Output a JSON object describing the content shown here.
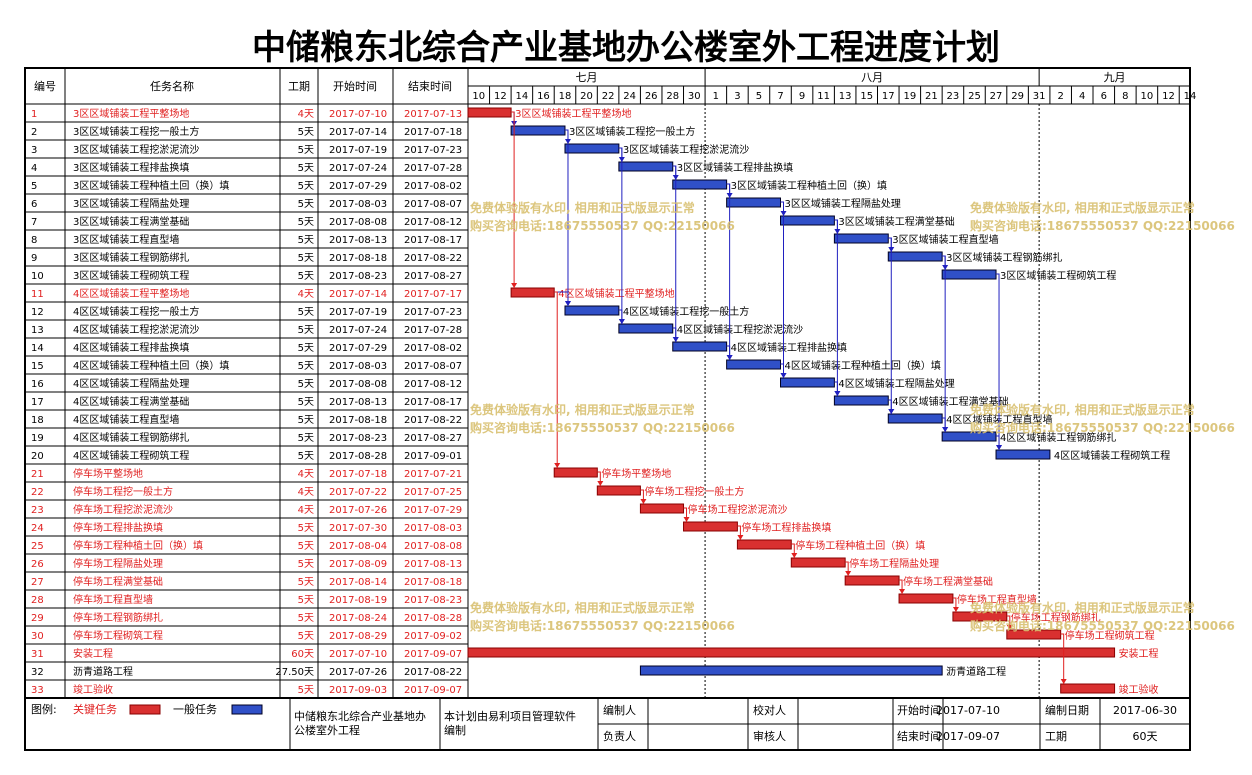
{
  "title": "中储粮东北综合产业基地办公楼室外工程进度计划",
  "headers": {
    "id": "编号",
    "name": "任务名称",
    "duration": "工期",
    "start": "开始时间",
    "end": "结束时间"
  },
  "months": [
    {
      "label": "七月",
      "from": "2017-07-10",
      "to": "2017-08-01"
    },
    {
      "label": "八月",
      "from": "2017-08-01",
      "to": "2017-09-01"
    },
    {
      "label": "九月",
      "from": "2017-09-01",
      "to": "2017-09-15"
    }
  ],
  "day_ticks": [
    "10",
    "12",
    "14",
    "16",
    "18",
    "20",
    "22",
    "24",
    "26",
    "28",
    "30",
    "1",
    "3",
    "5",
    "7",
    "9",
    "11",
    "13",
    "15",
    "17",
    "19",
    "21",
    "23",
    "25",
    "27",
    "29",
    "31",
    "2",
    "4",
    "6",
    "8",
    "10",
    "12",
    "14"
  ],
  "colors": {
    "critical": "#e02020",
    "critical_fill": "#d93030",
    "normal": "#2020c0",
    "normal_fill": "#3050c8",
    "watermark": "#d8c070",
    "border": "#000000"
  },
  "watermark_lines": [
    "免费体验版有水印, 相用和正式版显示正常",
    "购买咨询电话:18675550537 QQ:22150066"
  ],
  "chart_data": {
    "type": "gantt",
    "title": "中储粮东北综合产业基地办公楼室外工程进度计划",
    "x_range": [
      "2017-07-10",
      "2017-09-15"
    ],
    "tasks": [
      {
        "id": "1",
        "name": "3区区域铺装工程平整场地",
        "duration": "4天",
        "start": "2017-07-10",
        "end": "2017-07-13",
        "critical": true
      },
      {
        "id": "2",
        "name": "3区区域铺装工程挖一般土方",
        "duration": "5天",
        "start": "2017-07-14",
        "end": "2017-07-18",
        "critical": false
      },
      {
        "id": "3",
        "name": "3区区域铺装工程挖淤泥流沙",
        "duration": "5天",
        "start": "2017-07-19",
        "end": "2017-07-23",
        "critical": false
      },
      {
        "id": "4",
        "name": "3区区域铺装工程排盐换填",
        "duration": "5天",
        "start": "2017-07-24",
        "end": "2017-07-28",
        "critical": false
      },
      {
        "id": "5",
        "name": "3区区域铺装工程种植土回（换）填",
        "duration": "5天",
        "start": "2017-07-29",
        "end": "2017-08-02",
        "critical": false
      },
      {
        "id": "6",
        "name": "3区区域铺装工程隔盐处理",
        "duration": "5天",
        "start": "2017-08-03",
        "end": "2017-08-07",
        "critical": false
      },
      {
        "id": "7",
        "name": "3区区域铺装工程满堂基础",
        "duration": "5天",
        "start": "2017-08-08",
        "end": "2017-08-12",
        "critical": false
      },
      {
        "id": "8",
        "name": "3区区域铺装工程直型墙",
        "duration": "5天",
        "start": "2017-08-13",
        "end": "2017-08-17",
        "critical": false
      },
      {
        "id": "9",
        "name": "3区区域铺装工程钢筋绑扎",
        "duration": "5天",
        "start": "2017-08-18",
        "end": "2017-08-22",
        "critical": false
      },
      {
        "id": "10",
        "name": "3区区域铺装工程砌筑工程",
        "duration": "5天",
        "start": "2017-08-23",
        "end": "2017-08-27",
        "critical": false
      },
      {
        "id": "11",
        "name": "4区区域铺装工程平整场地",
        "duration": "4天",
        "start": "2017-07-14",
        "end": "2017-07-17",
        "critical": true
      },
      {
        "id": "12",
        "name": "4区区域铺装工程挖一般土方",
        "duration": "5天",
        "start": "2017-07-19",
        "end": "2017-07-23",
        "critical": false
      },
      {
        "id": "13",
        "name": "4区区域铺装工程挖淤泥流沙",
        "duration": "5天",
        "start": "2017-07-24",
        "end": "2017-07-28",
        "critical": false
      },
      {
        "id": "14",
        "name": "4区区域铺装工程排盐换填",
        "duration": "5天",
        "start": "2017-07-29",
        "end": "2017-08-02",
        "critical": false
      },
      {
        "id": "15",
        "name": "4区区域铺装工程种植土回（换）填",
        "duration": "5天",
        "start": "2017-08-03",
        "end": "2017-08-07",
        "critical": false
      },
      {
        "id": "16",
        "name": "4区区域铺装工程隔盐处理",
        "duration": "5天",
        "start": "2017-08-08",
        "end": "2017-08-12",
        "critical": false
      },
      {
        "id": "17",
        "name": "4区区域铺装工程满堂基础",
        "duration": "5天",
        "start": "2017-08-13",
        "end": "2017-08-17",
        "critical": false
      },
      {
        "id": "18",
        "name": "4区区域铺装工程直型墙",
        "duration": "5天",
        "start": "2017-08-18",
        "end": "2017-08-22",
        "critical": false
      },
      {
        "id": "19",
        "name": "4区区域铺装工程钢筋绑扎",
        "duration": "5天",
        "start": "2017-08-23",
        "end": "2017-08-27",
        "critical": false
      },
      {
        "id": "20",
        "name": "4区区域铺装工程砌筑工程",
        "duration": "5天",
        "start": "2017-08-28",
        "end": "2017-09-01",
        "critical": false
      },
      {
        "id": "21",
        "name": "停车场平整场地",
        "duration": "4天",
        "start": "2017-07-18",
        "end": "2017-07-21",
        "critical": true
      },
      {
        "id": "22",
        "name": "停车场工程挖一般土方",
        "duration": "4天",
        "start": "2017-07-22",
        "end": "2017-07-25",
        "critical": true
      },
      {
        "id": "23",
        "name": "停车场工程挖淤泥流沙",
        "duration": "4天",
        "start": "2017-07-26",
        "end": "2017-07-29",
        "critical": true
      },
      {
        "id": "24",
        "name": "停车场工程排盐换填",
        "duration": "5天",
        "start": "2017-07-30",
        "end": "2017-08-03",
        "critical": true
      },
      {
        "id": "25",
        "name": "停车场工程种植土回（换）填",
        "duration": "5天",
        "start": "2017-08-04",
        "end": "2017-08-08",
        "critical": true
      },
      {
        "id": "26",
        "name": "停车场工程隔盐处理",
        "duration": "5天",
        "start": "2017-08-09",
        "end": "2017-08-13",
        "critical": true
      },
      {
        "id": "27",
        "name": "停车场工程满堂基础",
        "duration": "5天",
        "start": "2017-08-14",
        "end": "2017-08-18",
        "critical": true
      },
      {
        "id": "28",
        "name": "停车场工程直型墙",
        "duration": "5天",
        "start": "2017-08-19",
        "end": "2017-08-23",
        "critical": true
      },
      {
        "id": "29",
        "name": "停车场工程钢筋绑扎",
        "duration": "5天",
        "start": "2017-08-24",
        "end": "2017-08-28",
        "critical": true
      },
      {
        "id": "30",
        "name": "停车场工程砌筑工程",
        "duration": "5天",
        "start": "2017-08-29",
        "end": "2017-09-02",
        "critical": true
      },
      {
        "id": "31",
        "name": "安装工程",
        "duration": "60天",
        "start": "2017-07-10",
        "end": "2017-09-07",
        "critical": true
      },
      {
        "id": "32",
        "name": "沥青道路工程",
        "duration": "27.50天",
        "start": "2017-07-26",
        "end": "2017-08-22",
        "critical": false
      },
      {
        "id": "33",
        "name": "竣工验收",
        "duration": "5天",
        "start": "2017-09-03",
        "end": "2017-09-07",
        "critical": true
      }
    ],
    "links": [
      [
        "1",
        "2"
      ],
      [
        "2",
        "3"
      ],
      [
        "3",
        "4"
      ],
      [
        "4",
        "5"
      ],
      [
        "5",
        "6"
      ],
      [
        "6",
        "7"
      ],
      [
        "7",
        "8"
      ],
      [
        "8",
        "9"
      ],
      [
        "9",
        "10"
      ],
      [
        "1",
        "11"
      ],
      [
        "11",
        "12"
      ],
      [
        "12",
        "13"
      ],
      [
        "13",
        "14"
      ],
      [
        "14",
        "15"
      ],
      [
        "15",
        "16"
      ],
      [
        "16",
        "17"
      ],
      [
        "17",
        "18"
      ],
      [
        "18",
        "19"
      ],
      [
        "19",
        "20"
      ],
      [
        "11",
        "21"
      ],
      [
        "21",
        "22"
      ],
      [
        "22",
        "23"
      ],
      [
        "23",
        "24"
      ],
      [
        "24",
        "25"
      ],
      [
        "25",
        "26"
      ],
      [
        "26",
        "27"
      ],
      [
        "27",
        "28"
      ],
      [
        "28",
        "29"
      ],
      [
        "29",
        "30"
      ],
      [
        "2",
        "12"
      ],
      [
        "3",
        "13"
      ],
      [
        "4",
        "14"
      ],
      [
        "5",
        "15"
      ],
      [
        "6",
        "16"
      ],
      [
        "7",
        "17"
      ],
      [
        "8",
        "18"
      ],
      [
        "9",
        "19"
      ],
      [
        "10",
        "20"
      ],
      [
        "30",
        "33"
      ]
    ]
  },
  "footer": {
    "legend_label": "图例:",
    "legend_critical": "关键任务",
    "legend_normal": "一般任务",
    "project_name": "中储粮东北综合产业基地办公楼室外工程",
    "made_by": "本计划由易利项目管理软件编制",
    "editor_label": "编制人",
    "checker_label": "校对人",
    "start_label": "开始时间",
    "start_value": "2017-07-10",
    "date_label": "编制日期",
    "date_value": "2017-06-30",
    "owner_label": "负责人",
    "reviewer_label": "审核人",
    "end_label": "结束时间",
    "end_value": "2017-09-07",
    "duration_label": "工期",
    "duration_value": "60天"
  }
}
